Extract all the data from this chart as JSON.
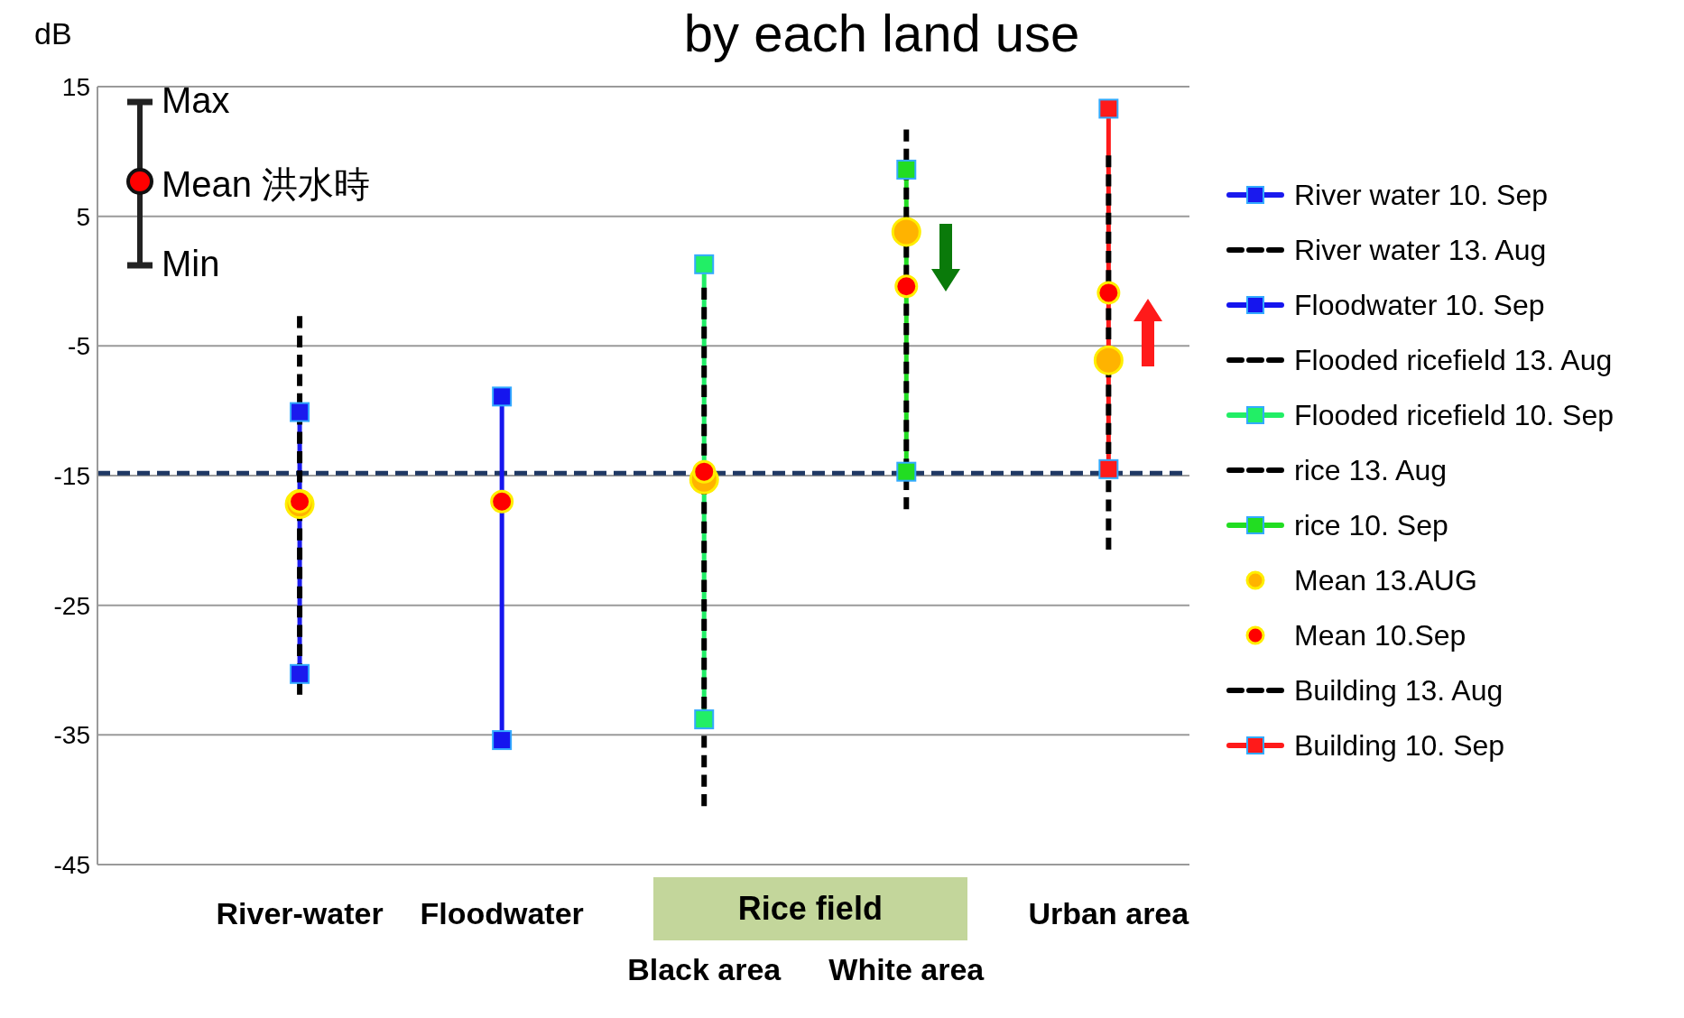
{
  "chart_data": {
    "type": "line",
    "title": "by each land use",
    "ylabel": "dB",
    "categories": [
      "River-water",
      "Floodwater",
      "Black area",
      "White area",
      "Urban area"
    ],
    "ylim": [
      -45,
      15
    ],
    "yticks": [
      15,
      5,
      -5,
      -15,
      -25,
      -35,
      -45
    ],
    "grid": "y",
    "legend": "right",
    "ref_lines": [
      {
        "axis": "y",
        "value": -14.8,
        "color": "#1f3864",
        "line_style": "dashed"
      }
    ],
    "annotations": [
      "Rice field",
      "Max",
      "Mean 洪水時",
      "Min"
    ],
    "series": [
      {
        "name": "River water 10. Sep",
        "color": "#1a1aee",
        "x": [
          "River-water",
          "River-water"
        ],
        "values": [
          -10.1,
          -30.3
        ],
        "marker": "square",
        "line_style": "solid"
      },
      {
        "name": "River water 13. Aug",
        "color": "#000000",
        "x": [
          "River-water",
          "River-water"
        ],
        "values": [
          -2.7,
          -31.9
        ],
        "marker": "none",
        "line_style": "dashed"
      },
      {
        "name": "Floodwater 10. Sep",
        "color": "#1515ee",
        "x": [
          "Floodwater",
          "Floodwater"
        ],
        "values": [
          -8.9,
          -35.4
        ],
        "marker": "square",
        "line_style": "solid"
      },
      {
        "name": "Flooded ricefield 13. Aug",
        "color": "#000000",
        "x": [
          "Black area",
          "Black area"
        ],
        "values": [
          -0.5,
          -40.5
        ],
        "marker": "none",
        "line_style": "dashed"
      },
      {
        "name": "Flooded ricefield 10. Sep",
        "color": "#22ee66",
        "x": [
          "Black area",
          "Black area"
        ],
        "values": [
          1.3,
          -33.8
        ],
        "marker": "square",
        "line_style": "solid"
      },
      {
        "name": "rice 13. Aug",
        "color": "#000000",
        "x": [
          "White area",
          "White area"
        ],
        "values": [
          11.7,
          -17.6
        ],
        "marker": "none",
        "line_style": "dashed"
      },
      {
        "name": "rice 10. Sep",
        "color": "#22dd22",
        "x": [
          "White area",
          "White area"
        ],
        "values": [
          8.6,
          -14.7
        ],
        "marker": "square",
        "line_style": "solid"
      },
      {
        "name": "Mean 13.AUG",
        "type": "scatter",
        "color": "#ffb300",
        "values": [
          -17.2,
          null,
          -15.3,
          3.8,
          -6.1
        ],
        "marker": "circle"
      },
      {
        "name": "Mean 10.Sep",
        "type": "scatter",
        "color": "#ff0000",
        "values": [
          -17,
          -17,
          -14.7,
          -0.4,
          -0.9
        ],
        "marker": "circle"
      },
      {
        "name": "Building 13. Aug",
        "color": "#000000",
        "x": [
          "Urban area",
          "Urban area"
        ],
        "values": [
          9.7,
          -20.7
        ],
        "marker": "none",
        "line_style": "dashed"
      },
      {
        "name": "Building 10. Sep",
        "color": "#ff1a1a",
        "x": [
          "Urban area",
          "Urban area"
        ],
        "values": [
          13.3,
          -14.5
        ],
        "marker": "square",
        "line_style": "solid"
      }
    ]
  }
}
